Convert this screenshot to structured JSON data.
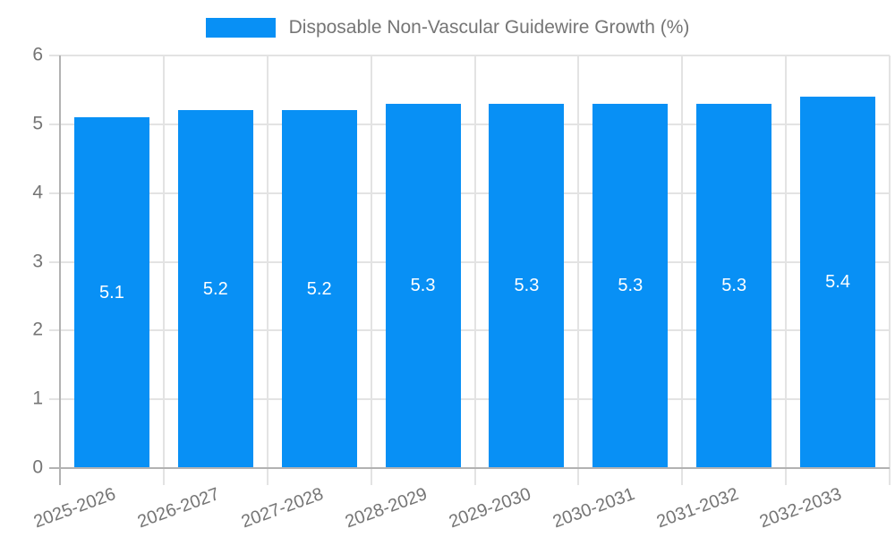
{
  "legend": {
    "label": "Disposable Non-Vascular Guidewire Growth (%)"
  },
  "chart_data": {
    "type": "bar",
    "title": "Disposable Non-Vascular Guidewire Growth (%)",
    "categories": [
      "2025-2026",
      "2026-2027",
      "2027-2028",
      "2028-2029",
      "2029-2030",
      "2030-2031",
      "2031-2032",
      "2032-2033"
    ],
    "series": [
      {
        "name": "Disposable Non-Vascular Guidewire Growth (%)",
        "values": [
          5.1,
          5.2,
          5.2,
          5.3,
          5.3,
          5.3,
          5.3,
          5.4
        ]
      }
    ],
    "xlabel": "",
    "ylabel": "",
    "ylim": [
      0,
      6
    ],
    "yticks": [
      0,
      1,
      2,
      3,
      4,
      5,
      6
    ],
    "grid": true,
    "legend_position": "top",
    "bar_labels_shown": true,
    "x_label_rotation_deg": -20
  },
  "colors": {
    "bar": "#0890f5",
    "text": "#757575",
    "grid": "#e3e3e3",
    "axis": "#b2b2b2",
    "bar_label": "#ffffff",
    "background": "#ffffff"
  }
}
